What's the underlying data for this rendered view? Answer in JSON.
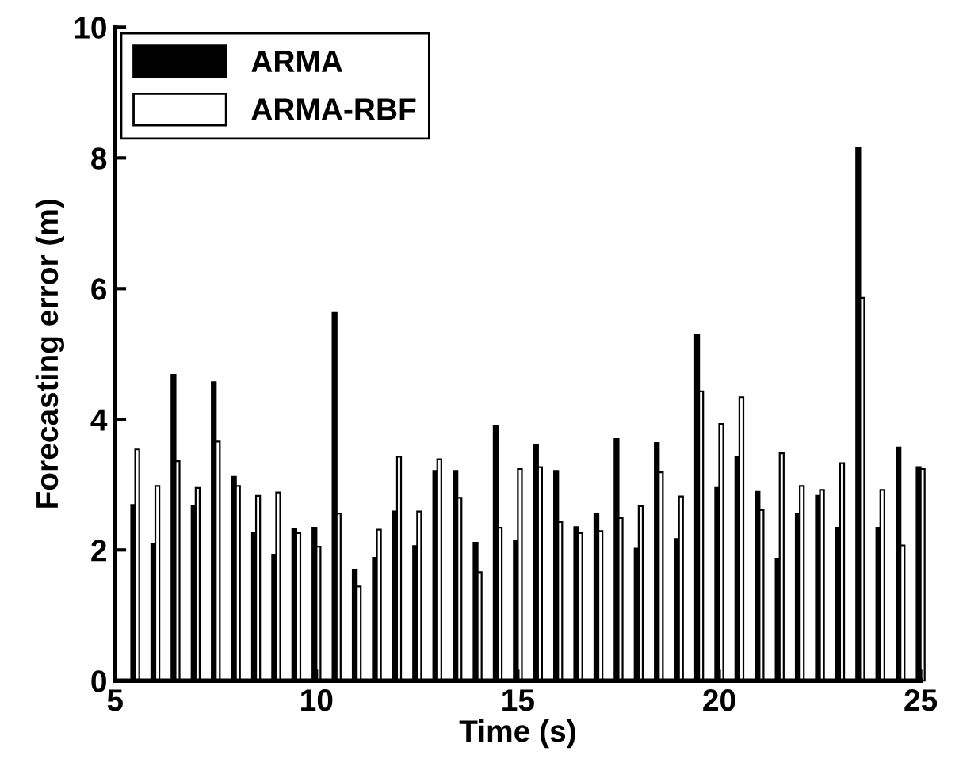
{
  "chart_data": {
    "type": "bar",
    "xlabel": "Time (s)",
    "ylabel": "Forecasting error (m)",
    "x": [
      5.5,
      6,
      6.5,
      7,
      7.5,
      8,
      8.5,
      9,
      9.5,
      10,
      10.5,
      11,
      11.5,
      12,
      12.5,
      13,
      13.5,
      14,
      14.5,
      15,
      15.5,
      16,
      16.5,
      17,
      17.5,
      18,
      18.5,
      19,
      19.5,
      20,
      20.5,
      21,
      21.5,
      22,
      22.5,
      23,
      23.5,
      24,
      24.5,
      25
    ],
    "series": [
      {
        "name": "ARMA",
        "color": "#000000",
        "values": [
          2.69,
          2.09,
          4.68,
          2.68,
          4.57,
          3.12,
          2.26,
          1.93,
          2.32,
          2.34,
          5.63,
          1.7,
          1.88,
          2.59,
          2.06,
          3.21,
          3.21,
          2.11,
          3.9,
          2.14,
          3.61,
          3.21,
          2.35,
          2.56,
          3.7,
          2.02,
          3.64,
          2.17,
          5.3,
          2.95,
          3.43,
          2.89,
          1.87,
          2.56,
          2.83,
          2.34,
          8.16,
          2.34,
          3.57,
          3.27
        ]
      },
      {
        "name": "ARMA-RBF",
        "color": "#ffffff",
        "values": [
          3.54,
          2.98,
          3.36,
          2.95,
          3.66,
          2.98,
          2.83,
          2.88,
          2.26,
          2.05,
          2.56,
          1.44,
          2.31,
          3.43,
          2.59,
          3.39,
          2.8,
          1.66,
          2.34,
          3.24,
          3.27,
          2.43,
          2.26,
          2.29,
          2.49,
          2.67,
          3.19,
          2.82,
          4.43,
          3.93,
          4.34,
          2.61,
          3.48,
          2.98,
          2.92,
          3.33,
          5.86,
          2.92,
          2.07,
          3.24
        ]
      }
    ],
    "xlim": [
      5,
      25
    ],
    "xticks": [
      5,
      10,
      15,
      20,
      25
    ],
    "ylim": [
      0,
      10
    ],
    "yticks": [
      0,
      2,
      4,
      6,
      8,
      10
    ],
    "grid": false,
    "legend": "top left"
  }
}
